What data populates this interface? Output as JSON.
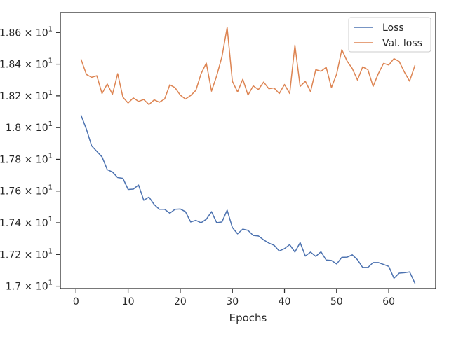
{
  "chart_data": {
    "type": "line",
    "xlabel": "Epochs",
    "ylabel": "",
    "xlim": [
      -3,
      69
    ],
    "ylim": [
      16.985,
      18.725
    ],
    "legend_position": "top-right",
    "x_ticks": [
      {
        "value": 0,
        "label": "0"
      },
      {
        "value": 10,
        "label": "10"
      },
      {
        "value": 20,
        "label": "20"
      },
      {
        "value": 30,
        "label": "30"
      },
      {
        "value": 40,
        "label": "40"
      },
      {
        "value": 50,
        "label": "50"
      },
      {
        "value": 60,
        "label": "60"
      }
    ],
    "y_ticks": [
      {
        "value": 17.0,
        "mantissa": "1.7",
        "times": "×",
        "base": "10",
        "exp": "1"
      },
      {
        "value": 17.2,
        "mantissa": "1.72",
        "times": "×",
        "base": "10",
        "exp": "1"
      },
      {
        "value": 17.4,
        "mantissa": "1.74",
        "times": "×",
        "base": "10",
        "exp": "1"
      },
      {
        "value": 17.6,
        "mantissa": "1.76",
        "times": "×",
        "base": "10",
        "exp": "1"
      },
      {
        "value": 17.8,
        "mantissa": "1.78",
        "times": "×",
        "base": "10",
        "exp": "1"
      },
      {
        "value": 18.0,
        "mantissa": "1.8",
        "times": "×",
        "base": "10",
        "exp": "1"
      },
      {
        "value": 18.2,
        "mantissa": "1.82",
        "times": "×",
        "base": "10",
        "exp": "1"
      },
      {
        "value": 18.4,
        "mantissa": "1.84",
        "times": "×",
        "base": "10",
        "exp": "1"
      },
      {
        "value": 18.6,
        "mantissa": "1.86",
        "times": "×",
        "base": "10",
        "exp": "1"
      }
    ],
    "x": [
      1,
      2,
      3,
      4,
      5,
      6,
      7,
      8,
      9,
      10,
      11,
      12,
      13,
      14,
      15,
      16,
      17,
      18,
      19,
      20,
      21,
      22,
      23,
      24,
      25,
      26,
      27,
      28,
      29,
      30,
      31,
      32,
      33,
      34,
      35,
      36,
      37,
      38,
      39,
      40,
      41,
      42,
      43,
      44,
      45,
      46,
      47,
      48,
      49,
      50,
      51,
      52,
      53,
      54,
      55,
      56,
      57,
      58,
      59,
      60,
      61,
      62,
      63,
      64,
      65
    ],
    "series": [
      {
        "name": "Loss",
        "color": "#4c72b0",
        "values": [
          18.075,
          17.99,
          17.885,
          17.85,
          17.815,
          17.735,
          17.72,
          17.685,
          17.68,
          17.61,
          17.612,
          17.638,
          17.542,
          17.562,
          17.515,
          17.485,
          17.485,
          17.46,
          17.485,
          17.487,
          17.47,
          17.405,
          17.415,
          17.4,
          17.422,
          17.47,
          17.4,
          17.405,
          17.48,
          17.37,
          17.33,
          17.36,
          17.352,
          17.32,
          17.317,
          17.292,
          17.272,
          17.258,
          17.222,
          17.237,
          17.262,
          17.215,
          17.275,
          17.19,
          17.215,
          17.188,
          17.217,
          17.165,
          17.162,
          17.14,
          17.182,
          17.183,
          17.198,
          17.167,
          17.118,
          17.118,
          17.149,
          17.149,
          17.137,
          17.125,
          17.05,
          17.082,
          17.085,
          17.09,
          17.02
        ]
      },
      {
        "name": "Val. loss",
        "color": "#dd8452",
        "values": [
          18.428,
          18.335,
          18.317,
          18.327,
          18.215,
          18.275,
          18.21,
          18.34,
          18.192,
          18.155,
          18.187,
          18.165,
          18.177,
          18.145,
          18.175,
          18.16,
          18.18,
          18.27,
          18.252,
          18.205,
          18.18,
          18.202,
          18.235,
          18.34,
          18.407,
          18.23,
          18.327,
          18.447,
          18.632,
          18.292,
          18.225,
          18.305,
          18.205,
          18.263,
          18.24,
          18.287,
          18.245,
          18.25,
          18.215,
          18.272,
          18.215,
          18.52,
          18.26,
          18.292,
          18.227,
          18.365,
          18.355,
          18.38,
          18.252,
          18.337,
          18.492,
          18.42,
          18.373,
          18.3,
          18.383,
          18.365,
          18.26,
          18.34,
          18.405,
          18.395,
          18.435,
          18.417,
          18.35,
          18.293,
          18.39
        ]
      }
    ]
  }
}
